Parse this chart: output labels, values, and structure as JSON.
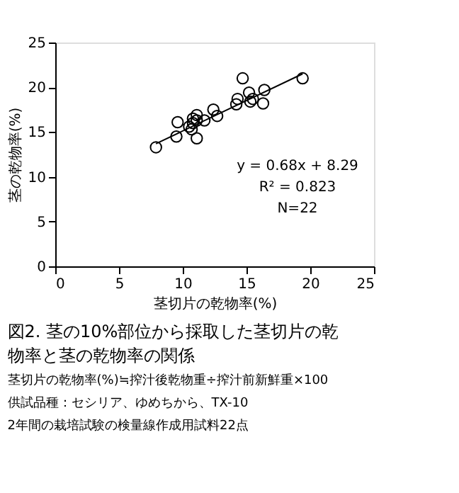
{
  "chart_data": {
    "type": "scatter",
    "title": "図2. 茎の10%部位から採取した茎切片の乾物率と茎の乾物率の関係",
    "xlabel": "茎切片の乾物率(%)",
    "ylabel": "茎の乾物率(%)",
    "xlim": [
      0,
      25
    ],
    "xticks": [
      0,
      5,
      10,
      15,
      20,
      25
    ],
    "ylim": [
      0,
      25
    ],
    "yticks": [
      0,
      5,
      10,
      15,
      20,
      25
    ],
    "grid": false,
    "series": [
      {
        "color": "#000000",
        "marker": "circle",
        "x": [
          7.9,
          9.6,
          9.5,
          11.1,
          11.1,
          10.7,
          10.8,
          11.1,
          10.5,
          11.7,
          12.4,
          12.7,
          14.7,
          14.2,
          14.3,
          15.2,
          15.3,
          16.3,
          16.4,
          19.4,
          15.5,
          10.8
        ],
        "values": [
          13.3,
          16.1,
          14.5,
          16.9,
          14.3,
          15.3,
          16.0,
          16.3,
          15.6,
          16.3,
          17.5,
          16.8,
          21.0,
          18.1,
          18.7,
          19.4,
          18.4,
          18.2,
          19.7,
          21.0,
          18.7,
          16.5
        ]
      },
      {
        "type": "line",
        "color": "#000000",
        "marker": "none",
        "x": [
          7.9,
          19.4
        ],
        "values": [
          13.7,
          21.5
        ]
      }
    ],
    "annotations": [
      "y = 0.68x + 8.29",
      "R² = 0.823",
      "N=22",
      "茎切片の乾物率(%)≒搾汁後乾物重÷搾汁前新鮮重×100",
      "供試品種：セシリア、ゆめちから、TX-10",
      "2年間の栽培試験の検量線作成用試料22点"
    ]
  }
}
